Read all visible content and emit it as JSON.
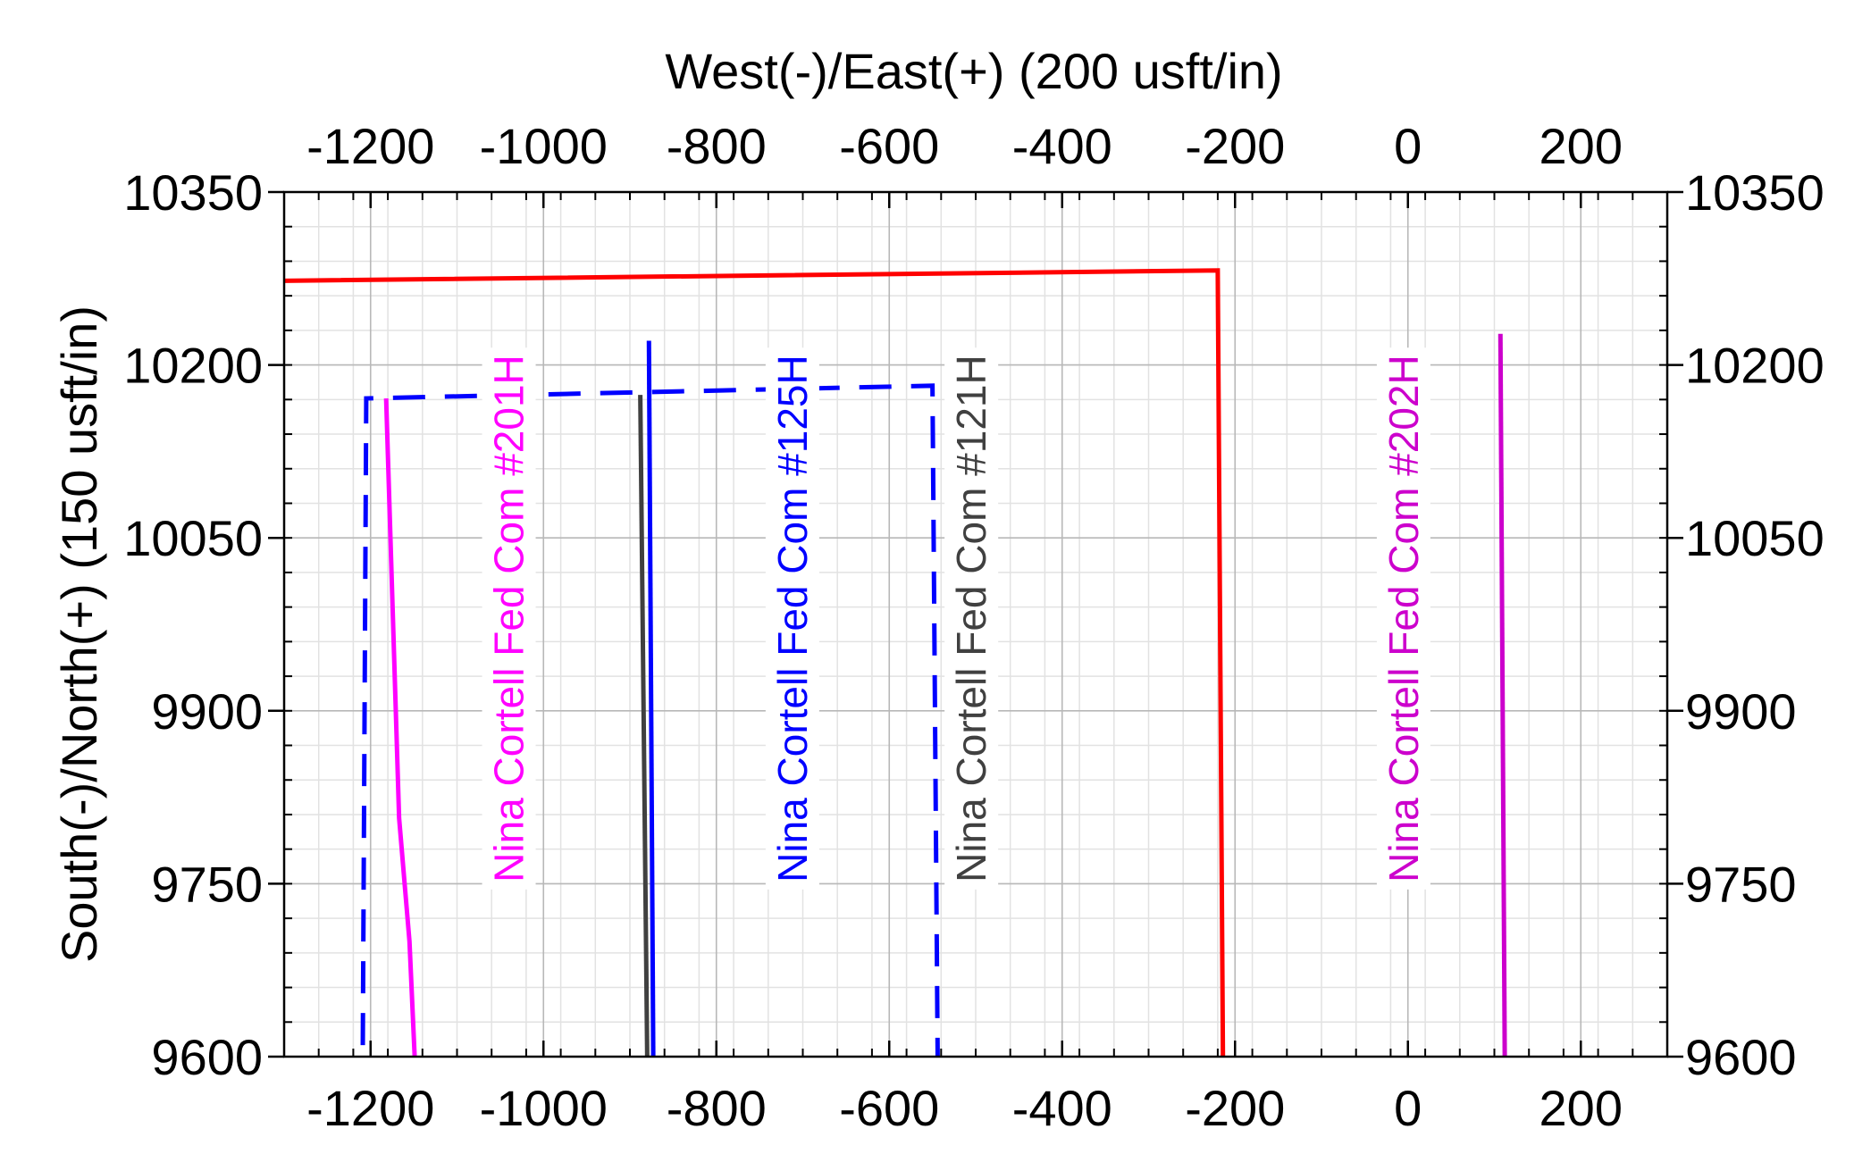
{
  "chart_data": {
    "type": "line",
    "x_axis_label": "West(-)/East(+) (200 usft/in)",
    "y_axis_label": "South(-)/North(+) (150 usft/in)",
    "xlim": [
      -1300,
      300
    ],
    "ylim": [
      9600,
      10350
    ],
    "x_ticks": [
      -1200,
      -1000,
      -800,
      -600,
      -400,
      -200,
      0,
      200
    ],
    "y_ticks": [
      9600,
      9750,
      9900,
      10050,
      10200,
      10350
    ],
    "x_minor_step": 40,
    "y_minor_step": 30,
    "grid": true,
    "series": [
      {
        "color": "#ff0000",
        "line_style": "solid",
        "x": [
          -1300,
          -220,
          -214
        ],
        "y": [
          10273,
          10282,
          9600
        ]
      },
      {
        "color": "#0000ff",
        "line_style": "dashed",
        "x": [
          -1209,
          -1205,
          -550,
          -544
        ],
        "y": [
          9610,
          10171,
          10182,
          9600
        ]
      },
      {
        "color": "#ff00ff",
        "line_style": "solid",
        "x": [
          -1182,
          -1167,
          -1155,
          -1149
        ],
        "y": [
          10171,
          9807,
          9700,
          9600
        ]
      },
      {
        "color": "#404040",
        "line_style": "solid",
        "x": [
          -888,
          -880
        ],
        "y": [
          10174,
          9600
        ]
      },
      {
        "color": "#0000ff",
        "line_style": "solid",
        "x": [
          -878,
          -873
        ],
        "y": [
          10221,
          9600
        ]
      },
      {
        "color": "#cc00cc",
        "line_style": "solid",
        "x": [
          107,
          112
        ],
        "y": [
          10227,
          9600
        ]
      }
    ],
    "annotations": [
      {
        "text": "Nina Cortell Fed Com #201H",
        "color": "#ff00ff",
        "x": -1040,
        "y": 9980
      },
      {
        "text": "Nina Cortell Fed Com #125H",
        "color": "#0000ff",
        "x": -712,
        "y": 9980
      },
      {
        "text": "Nina Cortell Fed Com #121H",
        "color": "#404040",
        "x": -505,
        "y": 9980
      },
      {
        "text": "Nina Cortell Fed Com #202H",
        "color": "#cc00cc",
        "x": -5,
        "y": 9980
      }
    ]
  }
}
